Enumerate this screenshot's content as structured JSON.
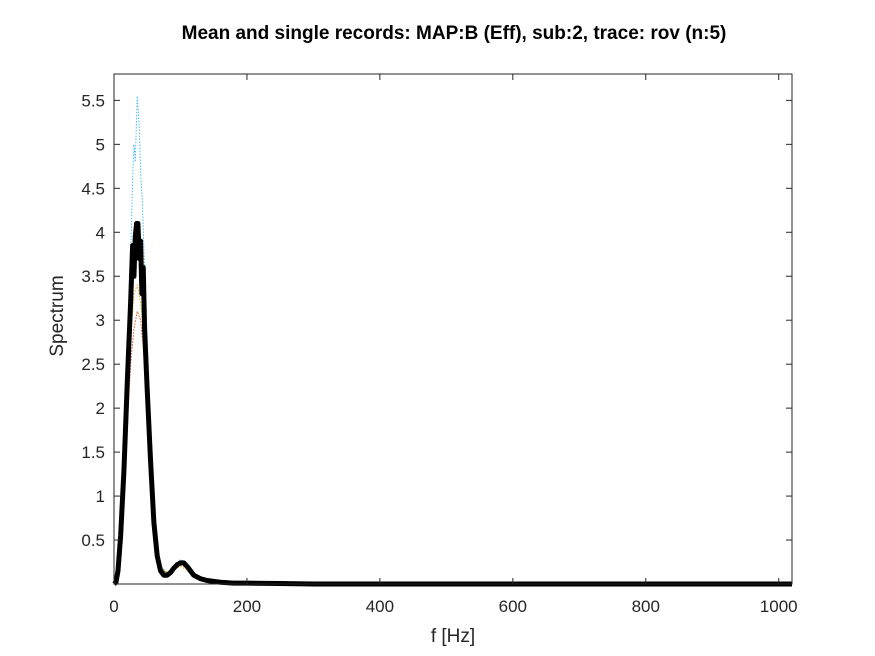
{
  "chart_data": {
    "type": "line",
    "title": "Mean and single records: MAP:B (Eff), sub:2, trace: rov (n:5)",
    "xlabel": "f [Hz]",
    "ylabel": "Spectrum",
    "xlim": [
      0,
      1020
    ],
    "ylim": [
      0,
      5.8
    ],
    "xticks": [
      0,
      200,
      400,
      600,
      800,
      1000
    ],
    "xtick_labels": [
      "0",
      "200",
      "400",
      "600",
      "800",
      "1000"
    ],
    "yticks": [
      0.5,
      1,
      1.5,
      2,
      2.5,
      3,
      3.5,
      4,
      4.5,
      5,
      5.5
    ],
    "ytick_labels": [
      "0.5",
      "1",
      "1.5",
      "2",
      "2.5",
      "3",
      "3.5",
      "4",
      "4.5",
      "5",
      "5.5"
    ],
    "grid": false,
    "legend": "none",
    "series": [
      {
        "style": "dotted",
        "color": "#4DBEEE",
        "x": [
          0,
          5,
          10,
          15,
          20,
          25,
          28,
          30,
          32,
          35,
          38,
          40,
          43,
          45,
          50,
          55,
          60,
          65,
          70,
          80,
          90,
          100,
          110,
          120,
          140,
          160,
          200,
          250,
          300,
          400,
          600,
          800,
          1020
        ],
        "y": [
          0.0,
          0.08,
          0.4,
          1.1,
          2.3,
          3.7,
          4.6,
          5.0,
          4.8,
          5.55,
          5.2,
          4.7,
          4.3,
          3.8,
          2.8,
          1.6,
          0.8,
          0.35,
          0.2,
          0.12,
          0.2,
          0.28,
          0.22,
          0.12,
          0.05,
          0.03,
          0.02,
          0.01,
          0.01,
          0.0,
          0.0,
          0.0,
          0.0
        ]
      },
      {
        "style": "dotted",
        "color": "#D95319",
        "x": [
          0,
          5,
          10,
          15,
          20,
          25,
          30,
          35,
          40,
          45,
          50,
          55,
          60,
          65,
          70,
          80,
          90,
          100,
          110,
          120,
          140,
          160,
          200,
          300,
          500,
          1020
        ],
        "y": [
          0.0,
          0.05,
          0.35,
          0.9,
          1.8,
          2.5,
          2.9,
          3.1,
          3.0,
          2.6,
          2.0,
          1.3,
          0.6,
          0.3,
          0.18,
          0.12,
          0.18,
          0.22,
          0.18,
          0.1,
          0.04,
          0.02,
          0.01,
          0.0,
          0.0,
          0.0
        ]
      },
      {
        "style": "dotted",
        "color": "#EDB120",
        "x": [
          0,
          5,
          10,
          15,
          20,
          25,
          30,
          35,
          40,
          45,
          50,
          55,
          60,
          65,
          70,
          80,
          90,
          100,
          110,
          120,
          140,
          160,
          200,
          300,
          500,
          1020
        ],
        "y": [
          0.0,
          0.06,
          0.38,
          1.0,
          2.0,
          2.8,
          3.3,
          3.4,
          3.2,
          2.8,
          2.1,
          1.4,
          0.7,
          0.3,
          0.18,
          0.12,
          0.17,
          0.2,
          0.16,
          0.09,
          0.04,
          0.02,
          0.01,
          0.0,
          0.0,
          0.0
        ]
      },
      {
        "style": "dotted",
        "color": "#77AC30",
        "x": [
          0,
          5,
          10,
          15,
          20,
          25,
          30,
          35,
          40,
          45,
          50,
          55,
          60,
          65,
          70,
          80,
          90,
          100,
          110,
          120,
          140,
          160,
          200,
          300,
          500,
          1020
        ],
        "y": [
          0.0,
          0.07,
          0.4,
          1.1,
          2.2,
          3.1,
          3.7,
          3.9,
          3.6,
          3.0,
          2.2,
          1.5,
          0.75,
          0.32,
          0.2,
          0.13,
          0.19,
          0.24,
          0.19,
          0.1,
          0.04,
          0.02,
          0.01,
          0.0,
          0.0,
          0.0
        ]
      },
      {
        "style": "mean-thick",
        "color": "#000000",
        "x": [
          0,
          3,
          6,
          10,
          15,
          20,
          25,
          28,
          30,
          32,
          34,
          36,
          38,
          40,
          42,
          44,
          46,
          50,
          55,
          60,
          65,
          70,
          75,
          80,
          85,
          90,
          95,
          100,
          105,
          110,
          115,
          120,
          130,
          140,
          150,
          160,
          180,
          200,
          250,
          300,
          400,
          600,
          800,
          1020
        ],
        "y": [
          0.0,
          0.02,
          0.15,
          0.55,
          1.3,
          2.3,
          3.2,
          3.85,
          3.5,
          3.95,
          4.1,
          4.1,
          3.7,
          3.9,
          3.3,
          3.6,
          2.9,
          2.2,
          1.4,
          0.7,
          0.32,
          0.15,
          0.1,
          0.1,
          0.13,
          0.18,
          0.22,
          0.24,
          0.24,
          0.2,
          0.15,
          0.1,
          0.06,
          0.04,
          0.03,
          0.02,
          0.01,
          0.01,
          0.005,
          0.0,
          0.0,
          0.0,
          0.0,
          0.0
        ]
      }
    ]
  }
}
